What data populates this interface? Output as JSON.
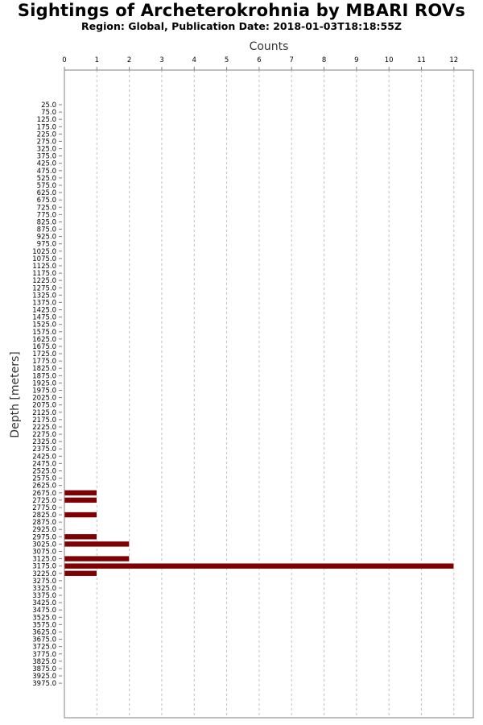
{
  "chart_data": {
    "type": "bar",
    "orientation": "horizontal",
    "title": "Sightings of Archeterokrohnia by MBARI ROVs",
    "subtitle": "Region: Global, Publication Date: 2018-01-03T18:18:55Z",
    "xlabel": "Counts",
    "ylabel": "Depth [meters]",
    "xlim": [
      0,
      12.6
    ],
    "x_ticks": [
      0,
      1,
      2,
      3,
      4,
      5,
      6,
      7,
      8,
      9,
      10,
      11,
      12
    ],
    "grid": true,
    "bar_color": "#7f0000",
    "categories": [
      "25.0",
      "75.0",
      "125.0",
      "175.0",
      "225.0",
      "275.0",
      "325.0",
      "375.0",
      "425.0",
      "475.0",
      "525.0",
      "575.0",
      "625.0",
      "675.0",
      "725.0",
      "775.0",
      "825.0",
      "875.0",
      "925.0",
      "975.0",
      "1025.0",
      "1075.0",
      "1125.0",
      "1175.0",
      "1225.0",
      "1275.0",
      "1325.0",
      "1375.0",
      "1425.0",
      "1475.0",
      "1525.0",
      "1575.0",
      "1625.0",
      "1675.0",
      "1725.0",
      "1775.0",
      "1825.0",
      "1875.0",
      "1925.0",
      "1975.0",
      "2025.0",
      "2075.0",
      "2125.0",
      "2175.0",
      "2225.0",
      "2275.0",
      "2325.0",
      "2375.0",
      "2425.0",
      "2475.0",
      "2525.0",
      "2575.0",
      "2625.0",
      "2675.0",
      "2725.0",
      "2775.0",
      "2825.0",
      "2875.0",
      "2925.0",
      "2975.0",
      "3025.0",
      "3075.0",
      "3125.0",
      "3175.0",
      "3225.0",
      "3275.0",
      "3325.0",
      "3375.0",
      "3425.0",
      "3475.0",
      "3525.0",
      "3575.0",
      "3625.0",
      "3675.0",
      "3725.0",
      "3775.0",
      "3825.0",
      "3875.0",
      "3925.0",
      "3975.0"
    ],
    "values": [
      0,
      0,
      0,
      0,
      0,
      0,
      0,
      0,
      0,
      0,
      0,
      0,
      0,
      0,
      0,
      0,
      0,
      0,
      0,
      0,
      0,
      0,
      0,
      0,
      0,
      0,
      0,
      0,
      0,
      0,
      0,
      0,
      0,
      0,
      0,
      0,
      0,
      0,
      0,
      0,
      0,
      0,
      0,
      0,
      0,
      0,
      0,
      0,
      0,
      0,
      0,
      0,
      0,
      1,
      1,
      0,
      1,
      0,
      0,
      1,
      2,
      0,
      2,
      12,
      1,
      0,
      0,
      0,
      0,
      0,
      0,
      0,
      0,
      0,
      0,
      0,
      0,
      0,
      0,
      0
    ]
  }
}
